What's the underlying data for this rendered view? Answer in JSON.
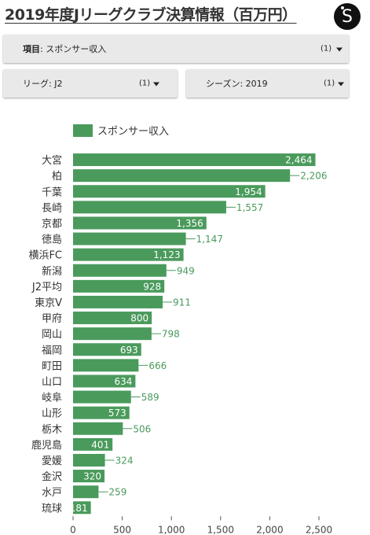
{
  "page": {
    "title": "2019年度Jリーグクラブ決算情報（百万円）",
    "logo_letter": "S",
    "logo_icon": "brand-logo-icon"
  },
  "filters": {
    "item": {
      "label": "項目",
      "value": "スポンサー収入",
      "count": "(1)"
    },
    "league": {
      "label": "リーグ",
      "value": "J2",
      "count": "(1)"
    },
    "season": {
      "label": "シーズン",
      "value": "2019",
      "count": "(1)"
    }
  },
  "colors": {
    "bar": "#4a9a5c",
    "label_outside": "#4a9a5c",
    "label_inside": "#ffffff",
    "axis": "#555555"
  },
  "chart_data": {
    "type": "bar",
    "orientation": "horizontal",
    "legend": "top-left",
    "grid": false,
    "categories": [
      "大宮",
      "柏",
      "千葉",
      "長崎",
      "京都",
      "徳島",
      "横浜FC",
      "新潟",
      "J2平均",
      "東京V",
      "甲府",
      "岡山",
      "福岡",
      "町田",
      "山口",
      "岐阜",
      "山形",
      "栃木",
      "鹿児島",
      "愛媛",
      "金沢",
      "水戸",
      "琉球"
    ],
    "series": [
      {
        "name": "スポンサー収入",
        "values": [
          2464,
          2206,
          1954,
          1557,
          1356,
          1147,
          1123,
          949,
          928,
          911,
          800,
          798,
          693,
          666,
          634,
          589,
          573,
          506,
          401,
          324,
          320,
          259,
          181
        ]
      }
    ],
    "data_labels": [
      "2,464",
      "2,206",
      "1,954",
      "1,557",
      "1,356",
      "1,147",
      "1,123",
      "949",
      "928",
      "911",
      "800",
      "798",
      "693",
      "666",
      "634",
      "589",
      "573",
      "506",
      "401",
      "324",
      "320",
      "259",
      "181"
    ],
    "xlim": [
      0,
      2500
    ],
    "xticks": [
      0,
      500,
      1000,
      1500,
      2000,
      2500
    ],
    "xtick_labels": [
      "0",
      "500",
      "1,000",
      "1,500",
      "2,000",
      "2,500"
    ]
  }
}
